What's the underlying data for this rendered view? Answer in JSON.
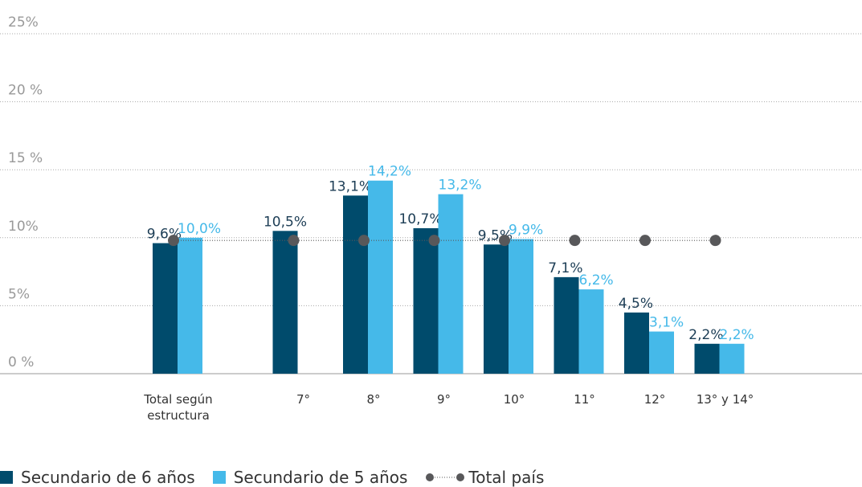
{
  "chart_data": {
    "type": "bar",
    "categories": [
      "Total según estructura",
      "7°",
      "8°",
      "9°",
      "10°",
      "11°",
      "12°",
      "13° y 14°"
    ],
    "series": [
      {
        "name": "Secundario de 6 años",
        "color": "#004b6c",
        "values": [
          9.6,
          10.5,
          13.1,
          10.7,
          9.5,
          7.1,
          4.5,
          2.2
        ],
        "value_labels": [
          "9,6%",
          "10,5%",
          "13,1%",
          "10,7%",
          "9,5%",
          "7,1%",
          "4,5%",
          "2,2%"
        ]
      },
      {
        "name": "Secundario de 5 años",
        "color": "#45b9e9",
        "values": [
          10.0,
          null,
          14.2,
          13.2,
          9.9,
          6.2,
          3.1,
          2.2
        ],
        "value_labels": [
          "10,0%",
          null,
          "14,2%",
          "13,2%",
          "9,9%",
          "6,2%",
          "3,1%",
          "2,2%"
        ]
      },
      {
        "name": "Total país",
        "type": "line",
        "color": "#58585a",
        "values": [
          9.8,
          9.8,
          9.8,
          9.8,
          9.8,
          9.8,
          9.8,
          9.8
        ]
      }
    ],
    "ylim": [
      0,
      25
    ],
    "yticks": [
      {
        "value": 0,
        "label": "0 %"
      },
      {
        "value": 5,
        "label": "5%"
      },
      {
        "value": 10,
        "label": "10%"
      },
      {
        "value": 15,
        "label": "15 %"
      },
      {
        "value": 20,
        "label": "20 %"
      },
      {
        "value": 25,
        "label": "25%"
      }
    ],
    "grid": true,
    "legend": "bottom"
  }
}
